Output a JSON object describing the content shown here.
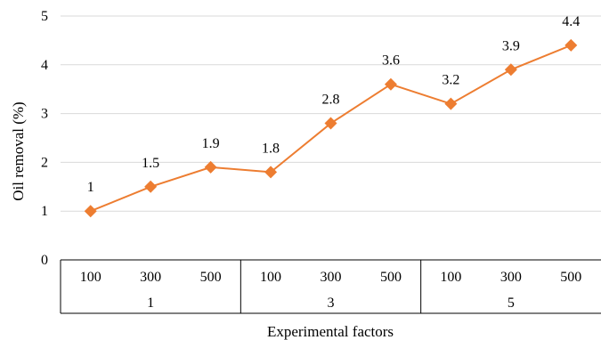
{
  "chart_data": {
    "type": "line",
    "title": "",
    "xlabel": "Experimental factors",
    "ylabel": "Oil removal (%)",
    "ylim": [
      0,
      5
    ],
    "yticks": [
      "0",
      "1",
      "2",
      "3",
      "4",
      "5"
    ],
    "grid": true,
    "legend": "none",
    "categories": [
      "100",
      "300",
      "500",
      "100",
      "300",
      "500",
      "100",
      "300",
      "500"
    ],
    "groups": [
      {
        "label": "1",
        "count": 3
      },
      {
        "label": "3",
        "count": 3
      },
      {
        "label": "5",
        "count": 3
      }
    ],
    "series": [
      {
        "color": "#ED7D31",
        "marker": "diamond",
        "values": [
          1,
          1.5,
          1.9,
          1.8,
          2.8,
          3.6,
          3.2,
          3.9,
          4.4
        ],
        "labels": [
          "1",
          "1.5",
          "1.9",
          "1.8",
          "2.8",
          "3.6",
          "3.2",
          "3.9",
          "4.4"
        ]
      }
    ]
  }
}
